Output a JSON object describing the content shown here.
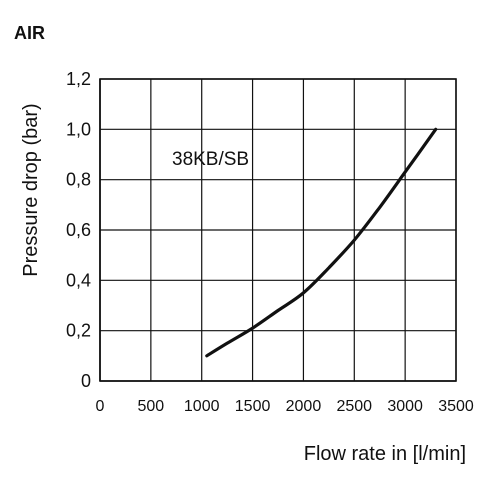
{
  "header": {
    "label": "AIR"
  },
  "chart_data": {
    "type": "line",
    "xlabel": "Flow rate in [l/min]",
    "ylabel": "Pressure drop (bar)",
    "xlim": [
      0,
      3500
    ],
    "ylim": [
      0,
      1.2
    ],
    "x_ticks": [
      0,
      500,
      1000,
      1500,
      2000,
      2500,
      3000,
      3500
    ],
    "x_tick_labels": [
      "0",
      "500",
      "1000",
      "1500",
      "2000",
      "2500",
      "3000",
      "3500"
    ],
    "y_ticks": [
      0,
      0.2,
      0.4,
      0.6,
      0.8,
      1.0,
      1.2
    ],
    "y_tick_labels": [
      "0",
      "0,2",
      "0,4",
      "0,6",
      "0,8",
      "1,0",
      "1,2"
    ],
    "grid": true,
    "series": [
      {
        "name": "38KB/SB",
        "color": "#111111",
        "x": [
          1050,
          1250,
          1500,
          1750,
          2000,
          2250,
          2500,
          2750,
          3000,
          3300
        ],
        "y": [
          0.1,
          0.15,
          0.21,
          0.28,
          0.35,
          0.45,
          0.56,
          0.69,
          0.83,
          1.0
        ]
      }
    ]
  }
}
